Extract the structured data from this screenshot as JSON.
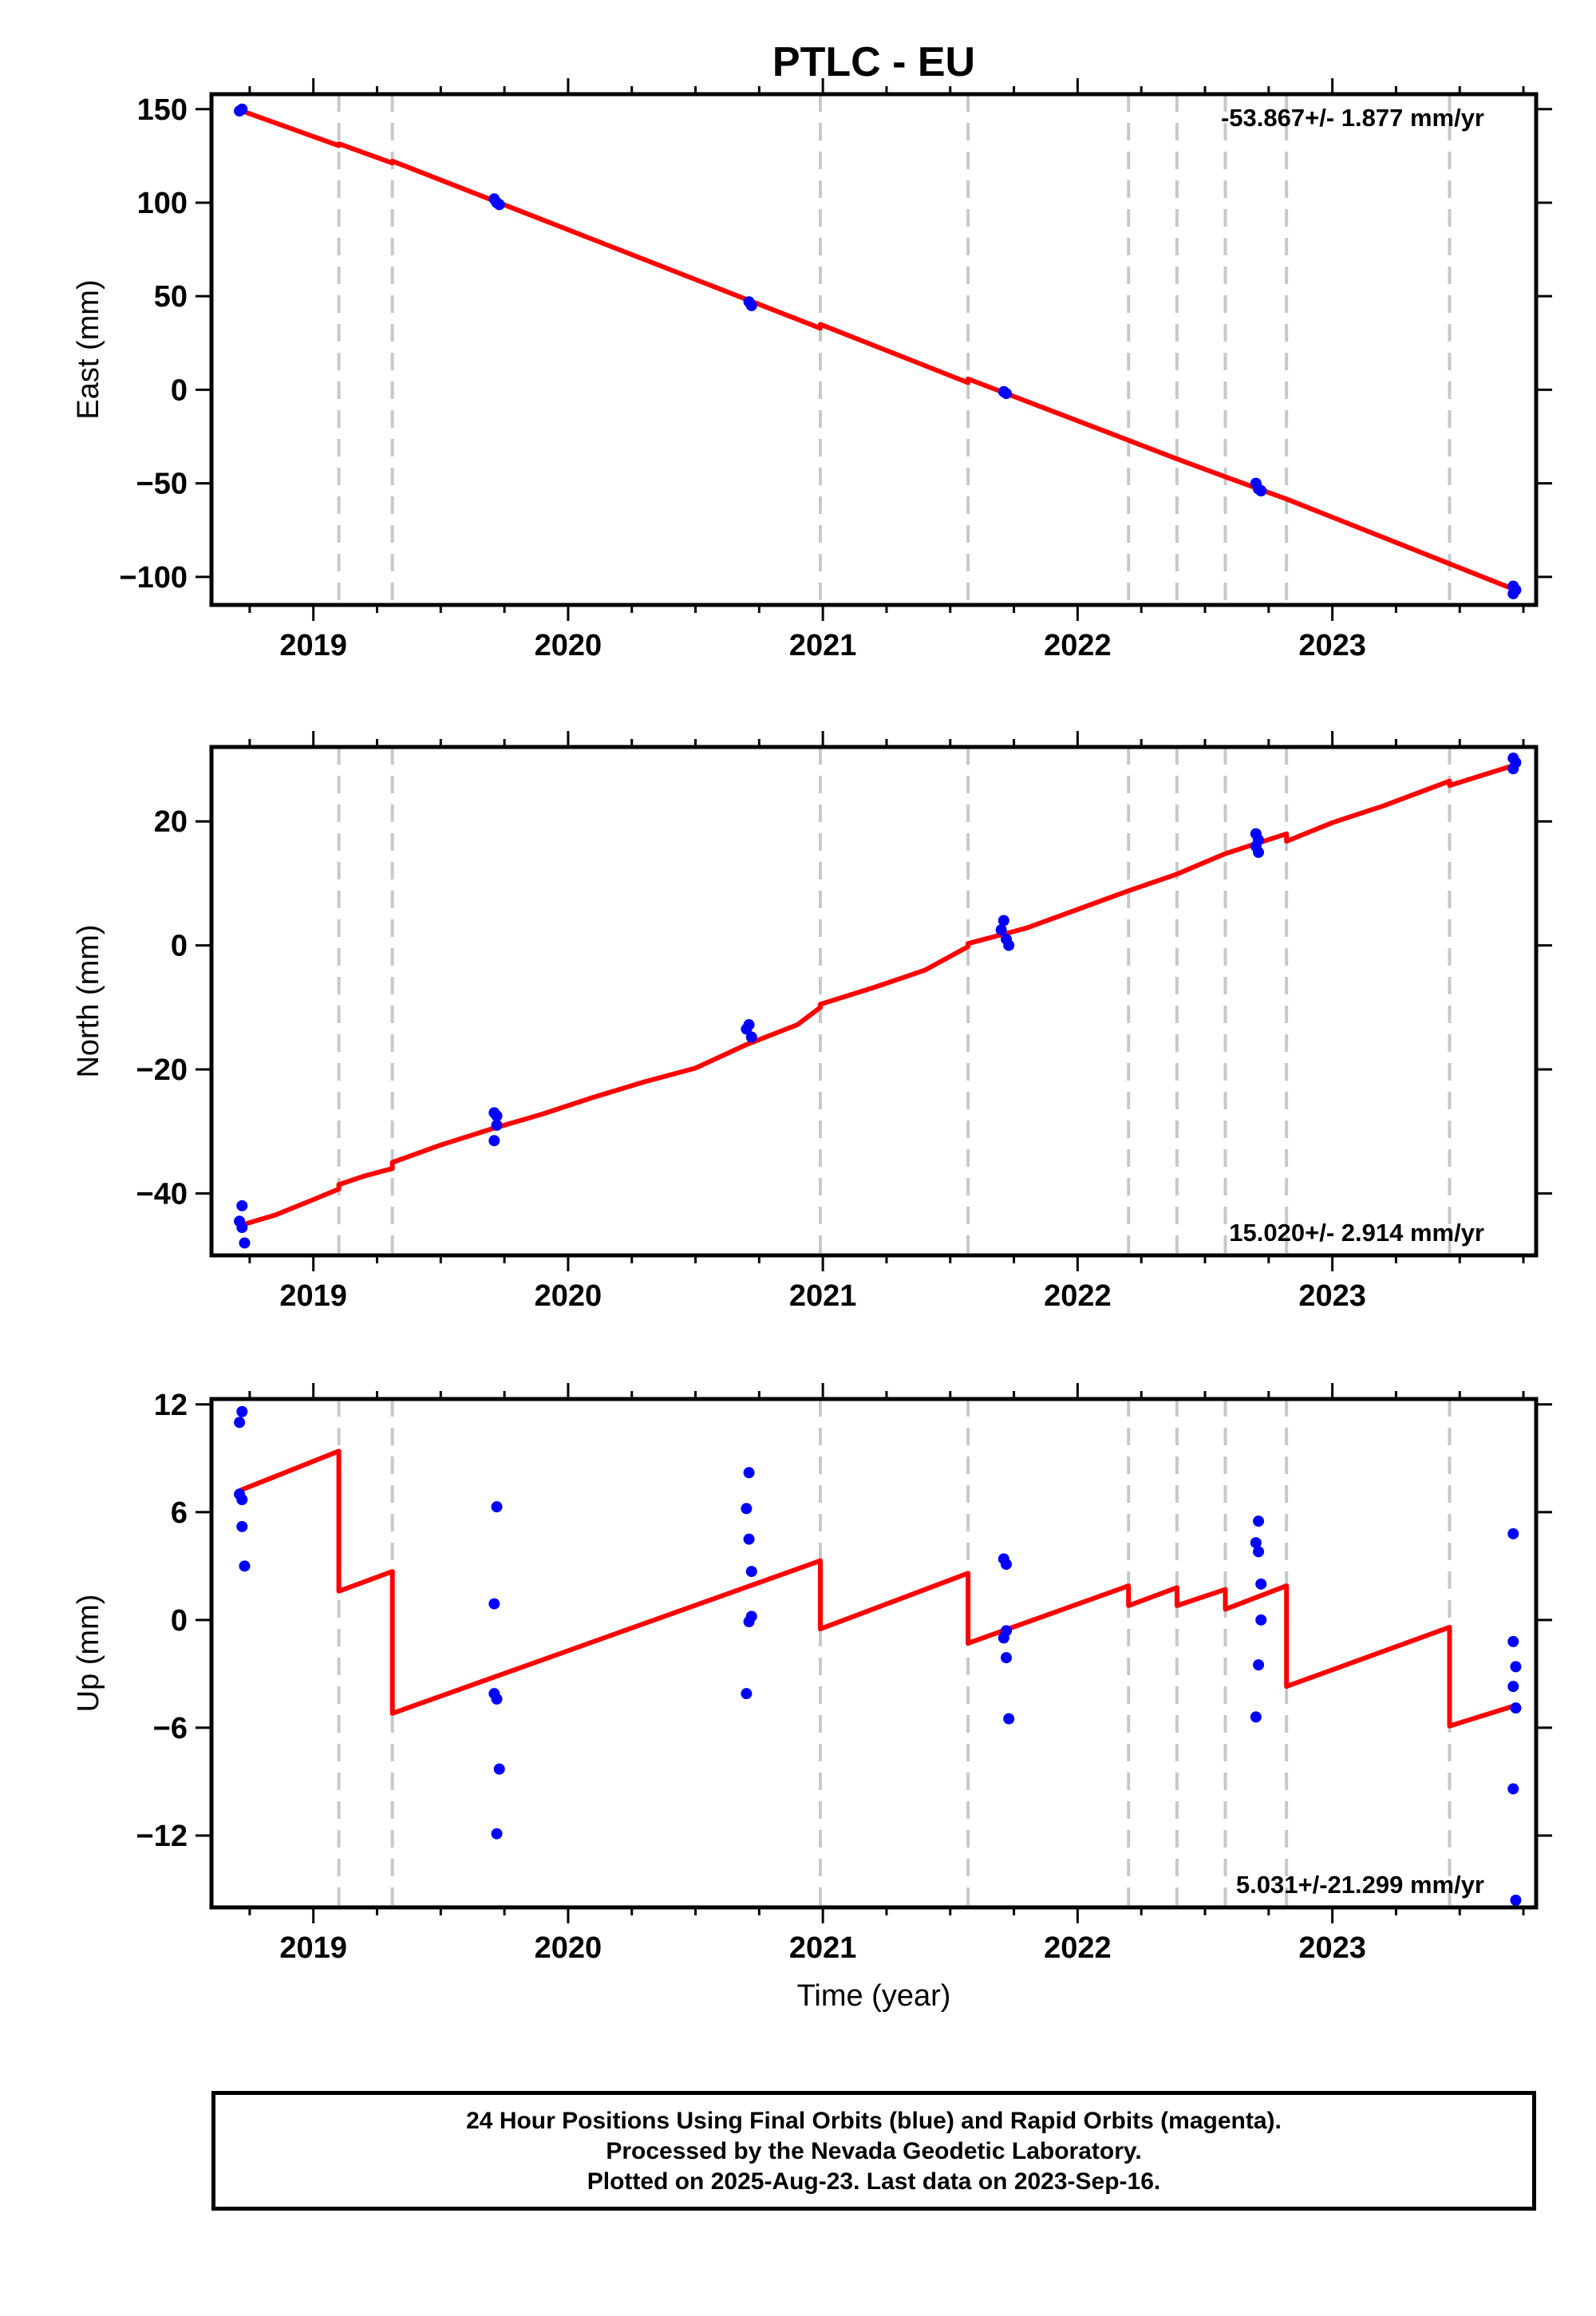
{
  "colors": {
    "model": "#ff0000",
    "final_orbits": "#0000ff",
    "rapid_orbits": "#ff00ff",
    "steps": "#c8c8c8",
    "frame": "#000000"
  },
  "chart_data": {
    "type": "scatter",
    "title": "PTLC - EU",
    "xlabel": "Time (year)",
    "xlim": [
      2018.6,
      2023.8
    ],
    "x_ticks": [
      2019,
      2020,
      2021,
      2022,
      2023
    ],
    "x_tick_labels": [
      "2019",
      "2020",
      "2021",
      "2022",
      "2023"
    ],
    "step_lines_year": [
      2019.1,
      2019.31,
      2020.99,
      2021.57,
      2022.2,
      2022.39,
      2022.58,
      2022.82,
      2023.46
    ],
    "panels": [
      {
        "name": "east",
        "ylabel": "East (mm)",
        "ylim": [
          -115,
          158
        ],
        "y_ticks": [
          150,
          100,
          50,
          0,
          -50,
          -100
        ],
        "y_tick_labels": [
          "150",
          "100",
          "50",
          "0",
          "−50",
          "−100"
        ],
        "rate_label": "-53.867+/- 1.877 mm/yr",
        "rate_position": "top-right",
        "model_points": [
          [
            2018.71,
            149.5
          ],
          [
            2019.1,
            130.5
          ],
          [
            2019.1,
            131.5
          ],
          [
            2019.31,
            121.2
          ],
          [
            2019.31,
            122.2
          ],
          [
            2020.99,
            32.9
          ],
          [
            2020.99,
            35.0
          ],
          [
            2021.57,
            3.8
          ],
          [
            2021.57,
            5.8
          ],
          [
            2022.2,
            -27.0
          ],
          [
            2022.39,
            -37.0
          ],
          [
            2022.58,
            -46.5
          ],
          [
            2022.82,
            -58.4
          ],
          [
            2023.46,
            -93.0
          ],
          [
            2023.71,
            -106.5
          ]
        ],
        "points": [
          {
            "x": 2018.71,
            "y": 149
          },
          {
            "x": 2018.72,
            "y": 150
          },
          {
            "x": 2019.71,
            "y": 102
          },
          {
            "x": 2019.72,
            "y": 100
          },
          {
            "x": 2019.73,
            "y": 99
          },
          {
            "x": 2020.71,
            "y": 47
          },
          {
            "x": 2020.72,
            "y": 45
          },
          {
            "x": 2021.71,
            "y": -1
          },
          {
            "x": 2021.72,
            "y": -2
          },
          {
            "x": 2022.7,
            "y": -50
          },
          {
            "x": 2022.71,
            "y": -53
          },
          {
            "x": 2022.72,
            "y": -54
          },
          {
            "x": 2023.71,
            "y": -105
          },
          {
            "x": 2023.72,
            "y": -107
          },
          {
            "x": 2023.71,
            "y": -109
          }
        ]
      },
      {
        "name": "north",
        "ylabel": "North (mm)",
        "ylim": [
          -50,
          32
        ],
        "y_ticks": [
          20,
          0,
          -20,
          -40
        ],
        "y_tick_labels": [
          "20",
          "0",
          "−20",
          "−40"
        ],
        "rate_label": "15.020+/- 2.914 mm/yr",
        "rate_position": "bottom-right",
        "model_points": [
          [
            2018.71,
            -45.2
          ],
          [
            2018.85,
            -43.5
          ],
          [
            2019.0,
            -41.0
          ],
          [
            2019.1,
            -39.3
          ],
          [
            2019.1,
            -38.6
          ],
          [
            2019.2,
            -37.2
          ],
          [
            2019.31,
            -36.0
          ],
          [
            2019.31,
            -35.0
          ],
          [
            2019.5,
            -32.2
          ],
          [
            2019.7,
            -29.6
          ],
          [
            2019.9,
            -27.2
          ],
          [
            2020.1,
            -24.5
          ],
          [
            2020.3,
            -22.0
          ],
          [
            2020.5,
            -19.8
          ],
          [
            2020.7,
            -16.0
          ],
          [
            2020.9,
            -12.8
          ],
          [
            2020.99,
            -10.0
          ],
          [
            2020.99,
            -9.5
          ],
          [
            2021.2,
            -6.8
          ],
          [
            2021.4,
            -4.0
          ],
          [
            2021.57,
            -0.2
          ],
          [
            2021.57,
            0.3
          ],
          [
            2021.8,
            2.8
          ],
          [
            2022.0,
            5.8
          ],
          [
            2022.2,
            8.8
          ],
          [
            2022.39,
            11.5
          ],
          [
            2022.58,
            14.8
          ],
          [
            2022.82,
            18.0
          ],
          [
            2022.82,
            16.8
          ],
          [
            2023.0,
            19.8
          ],
          [
            2023.2,
            22.5
          ],
          [
            2023.46,
            26.5
          ],
          [
            2023.46,
            25.8
          ],
          [
            2023.71,
            29.0
          ]
        ],
        "points": [
          {
            "x": 2018.72,
            "y": -42
          },
          {
            "x": 2018.71,
            "y": -44.5
          },
          {
            "x": 2018.72,
            "y": -45.5
          },
          {
            "x": 2018.73,
            "y": -48
          },
          {
            "x": 2019.71,
            "y": -27
          },
          {
            "x": 2019.72,
            "y": -27.5
          },
          {
            "x": 2019.72,
            "y": -29
          },
          {
            "x": 2019.71,
            "y": -31.5
          },
          {
            "x": 2020.71,
            "y": -12.8
          },
          {
            "x": 2020.7,
            "y": -13.5
          },
          {
            "x": 2020.72,
            "y": -14.8
          },
          {
            "x": 2021.71,
            "y": 4
          },
          {
            "x": 2021.7,
            "y": 2.5
          },
          {
            "x": 2021.72,
            "y": 1
          },
          {
            "x": 2021.73,
            "y": 0
          },
          {
            "x": 2022.7,
            "y": 18
          },
          {
            "x": 2022.71,
            "y": 17
          },
          {
            "x": 2022.7,
            "y": 16
          },
          {
            "x": 2022.71,
            "y": 15
          },
          {
            "x": 2023.71,
            "y": 30.2
          },
          {
            "x": 2023.72,
            "y": 29.5
          },
          {
            "x": 2023.71,
            "y": 28.5
          }
        ]
      },
      {
        "name": "up",
        "ylabel": "Up (mm)",
        "ylim": [
          -16,
          12.3
        ],
        "y_ticks": [
          12,
          6,
          0,
          -6,
          -12
        ],
        "y_tick_labels": [
          "12",
          "6",
          "0",
          "−6",
          "−12"
        ],
        "rate_label": "5.031+/-21.299 mm/yr",
        "rate_position": "bottom-right",
        "model_points": [
          [
            2018.71,
            7.2
          ],
          [
            2019.1,
            9.4
          ],
          [
            2019.1,
            1.6
          ],
          [
            2019.31,
            2.7
          ],
          [
            2019.31,
            -5.2
          ],
          [
            2020.99,
            3.3
          ],
          [
            2020.99,
            -0.5
          ],
          [
            2021.57,
            2.6
          ],
          [
            2021.57,
            -1.3
          ],
          [
            2022.2,
            1.9
          ],
          [
            2022.2,
            0.8
          ],
          [
            2022.39,
            1.8
          ],
          [
            2022.39,
            0.8
          ],
          [
            2022.58,
            1.7
          ],
          [
            2022.58,
            0.6
          ],
          [
            2022.82,
            1.9
          ],
          [
            2022.82,
            -3.7
          ],
          [
            2023.46,
            -0.4
          ],
          [
            2023.46,
            -5.9
          ],
          [
            2023.71,
            -4.8
          ]
        ],
        "points": [
          {
            "x": 2018.72,
            "y": 11.6
          },
          {
            "x": 2018.71,
            "y": 11.0
          },
          {
            "x": 2018.71,
            "y": 7.0
          },
          {
            "x": 2018.72,
            "y": 6.7
          },
          {
            "x": 2018.72,
            "y": 5.2
          },
          {
            "x": 2018.73,
            "y": 3.0
          },
          {
            "x": 2019.72,
            "y": 6.3
          },
          {
            "x": 2019.71,
            "y": 0.9
          },
          {
            "x": 2019.71,
            "y": -4.1
          },
          {
            "x": 2019.72,
            "y": -4.4
          },
          {
            "x": 2019.73,
            "y": -8.3
          },
          {
            "x": 2019.72,
            "y": -11.9
          },
          {
            "x": 2020.71,
            "y": 8.2
          },
          {
            "x": 2020.7,
            "y": 6.2
          },
          {
            "x": 2020.71,
            "y": 4.5
          },
          {
            "x": 2020.72,
            "y": 2.7
          },
          {
            "x": 2020.72,
            "y": 0.2
          },
          {
            "x": 2020.71,
            "y": -0.1
          },
          {
            "x": 2020.7,
            "y": -4.1
          },
          {
            "x": 2021.71,
            "y": 3.4
          },
          {
            "x": 2021.72,
            "y": 3.1
          },
          {
            "x": 2021.72,
            "y": -0.6
          },
          {
            "x": 2021.71,
            "y": -1.0
          },
          {
            "x": 2021.72,
            "y": -2.1
          },
          {
            "x": 2021.73,
            "y": -5.5
          },
          {
            "x": 2022.71,
            "y": 5.5
          },
          {
            "x": 2022.7,
            "y": 4.3
          },
          {
            "x": 2022.71,
            "y": 3.8
          },
          {
            "x": 2022.72,
            "y": 2.0
          },
          {
            "x": 2022.72,
            "y": 0.0
          },
          {
            "x": 2022.71,
            "y": -2.5
          },
          {
            "x": 2022.7,
            "y": -5.4
          },
          {
            "x": 2023.71,
            "y": 4.8
          },
          {
            "x": 2023.71,
            "y": -1.2
          },
          {
            "x": 2023.72,
            "y": -2.6
          },
          {
            "x": 2023.71,
            "y": -3.7
          },
          {
            "x": 2023.72,
            "y": -4.9
          },
          {
            "x": 2023.71,
            "y": -9.4
          },
          {
            "x": 2023.72,
            "y": -15.6
          }
        ]
      }
    ]
  },
  "footer": {
    "line1": "24 Hour Positions Using Final Orbits (blue) and Rapid Orbits (magenta).",
    "line2": "Processed by the Nevada Geodetic Laboratory.",
    "line3": "Plotted on 2025-Aug-23. Last data on 2023-Sep-16."
  }
}
